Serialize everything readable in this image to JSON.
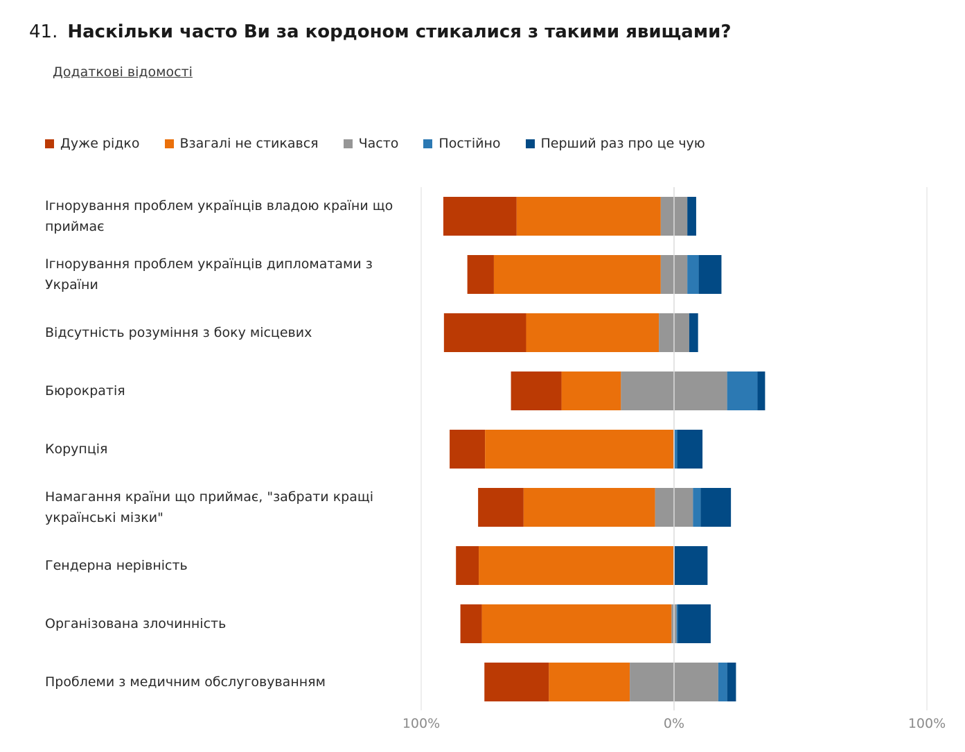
{
  "question": {
    "number": "41.",
    "text": "Наскільки часто Ви за кордоном стикалися з такими явищами?"
  },
  "details_link": "Додаткові відомості",
  "chart_data": {
    "type": "bar",
    "orientation": "horizontal",
    "stacking": "diverging",
    "legend_position": "top",
    "grid": true,
    "categories": [
      "Ігнорування проблем українців владою країни що приймає",
      "Ігнорування проблем українців дипломатами з України",
      "Відсутність розуміння з боку місцевих",
      "Бюрократія",
      "Корупція",
      "Намагання країни що приймає, \"забрати кращі українські мізки\"",
      "Гендерна нерівність",
      "Організована злочинність",
      "Проблеми з медичним обслуговуванням"
    ],
    "series": [
      {
        "name": "Дуже рідко",
        "color": "#bb3a04",
        "side": "negative",
        "values": [
          29,
          10.5,
          32.5,
          20,
          14,
          18,
          9,
          8.5,
          25.5
        ]
      },
      {
        "name": "Взагалі не стикався",
        "color": "#ea700b",
        "side": "negative",
        "values": [
          57,
          66,
          52.5,
          23.5,
          74.5,
          52,
          77,
          75,
          32
        ]
      },
      {
        "name": "Часто",
        "color": "#969696",
        "side": "center",
        "values": [
          10.5,
          10.5,
          12,
          42,
          0.5,
          15,
          0.5,
          2,
          35
        ]
      },
      {
        "name": "Постійно",
        "color": "#2c79b3",
        "side": "positive",
        "values": [
          0,
          4.5,
          0,
          12,
          1,
          3,
          0,
          0.5,
          3.5
        ]
      },
      {
        "name": "Перший раз про це чую",
        "color": "#024a85",
        "side": "positive",
        "values": [
          3.5,
          9,
          3.5,
          3,
          10,
          12,
          13,
          13,
          3.5
        ]
      }
    ],
    "xlim": [
      -100,
      100
    ],
    "x_ticks": [
      "100%",
      "0%",
      "100%"
    ]
  }
}
